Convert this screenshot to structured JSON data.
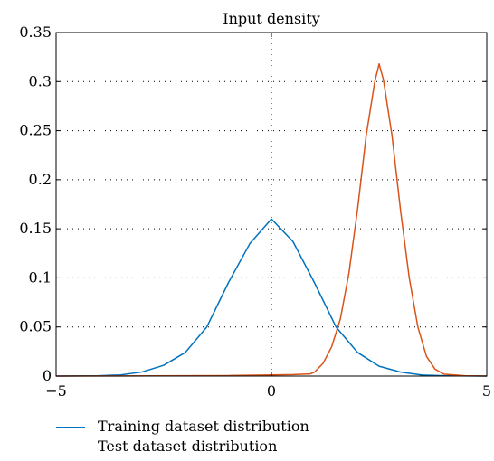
{
  "chart_data": {
    "type": "line",
    "title": "Input density",
    "xlabel": "",
    "ylabel": "",
    "xlim": [
      -5,
      5
    ],
    "ylim": [
      0,
      0.35
    ],
    "xticks": [
      -5,
      0,
      5
    ],
    "xtick_labels": [
      "−5",
      "0",
      "5"
    ],
    "yticks": [
      0,
      0.05,
      0.1,
      0.15,
      0.2,
      0.25,
      0.3,
      0.35
    ],
    "ytick_labels": [
      "0",
      "0.05",
      "0.1",
      "0.15",
      "0.2",
      "0.25",
      "0.3",
      "0.35"
    ],
    "grid": "dotted",
    "legend_position": "below",
    "series": [
      {
        "name": "Training dataset distribution",
        "color": "#0072bd",
        "x": [
          -5,
          -4,
          -3.5,
          -3,
          -2.5,
          -2,
          -1.5,
          -1,
          -0.5,
          0,
          0.5,
          1,
          1.5,
          2,
          2.5,
          3,
          3.5,
          4,
          5
        ],
        "y": [
          0,
          0.0003,
          0.0012,
          0.0042,
          0.011,
          0.024,
          0.05,
          0.095,
          0.135,
          0.16,
          0.137,
          0.095,
          0.05,
          0.024,
          0.01,
          0.004,
          0.001,
          0.0003,
          0
        ]
      },
      {
        "name": "Test dataset distribution",
        "color": "#d95319",
        "x": [
          -5,
          -1,
          0,
          0.5,
          0.9,
          1,
          1.2,
          1.4,
          1.6,
          1.8,
          2,
          2.2,
          2.4,
          2.5,
          2.6,
          2.8,
          3,
          3.2,
          3.4,
          3.6,
          3.8,
          4,
          4.5,
          5
        ],
        "y": [
          0,
          0.0005,
          0.0012,
          0.0015,
          0.0022,
          0.004,
          0.013,
          0.03,
          0.058,
          0.105,
          0.17,
          0.245,
          0.3,
          0.318,
          0.302,
          0.245,
          0.168,
          0.1,
          0.05,
          0.02,
          0.007,
          0.002,
          0.0003,
          0
        ]
      }
    ]
  }
}
